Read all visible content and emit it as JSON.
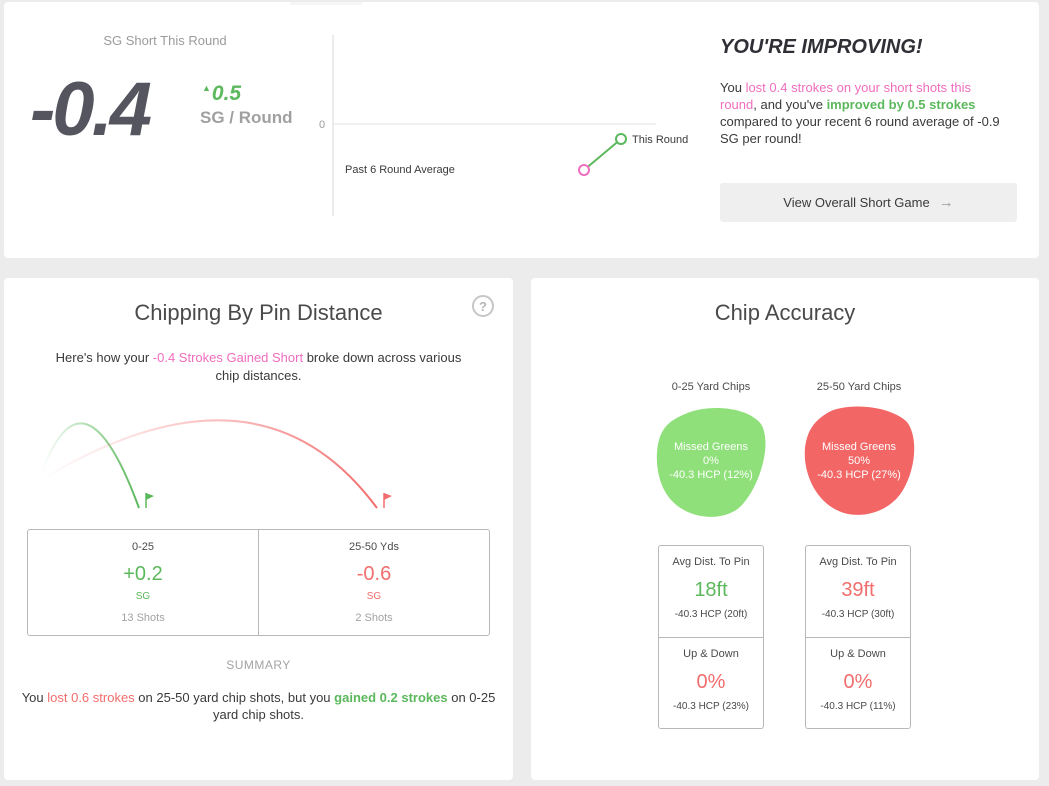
{
  "summary_card": {
    "label": "SG Short This Round",
    "value": "-0.4",
    "delta": "0.5",
    "delta_direction": "up",
    "unit": "SG / Round",
    "chart": {
      "zero_label": "0",
      "past_label": "Past 6 Round Average",
      "current_label": "This Round",
      "past_color": "#f06dbf",
      "current_color": "#5cb85c"
    },
    "headline": "YOU'RE IMPROVING!",
    "message": {
      "p1": "You ",
      "lost": "lost 0.4 strokes on your short shots this round",
      "p2": ", and you've ",
      "improved": "improved by 0.5 strokes",
      "p3": " compared to your recent 6 round average of -0.9 SG per round!"
    },
    "button_label": "View Overall Short Game",
    "button_icon": "arrow-right-icon"
  },
  "chipping": {
    "title": "Chipping By Pin Distance",
    "help_icon": "?",
    "intro": {
      "p1": "Here's how your ",
      "highlight": "-0.4 Strokes Gained Short",
      "p2": " broke down across various chip distances."
    },
    "columns": [
      {
        "label": "0-25",
        "value": "+0.2",
        "unit": "SG",
        "shots": "13 Shots",
        "color": "#5cb85c"
      },
      {
        "label": "25-50 Yds",
        "value": "-0.6",
        "unit": "SG",
        "shots": "2 Shots",
        "color": "#f26d6d"
      }
    ],
    "summary_heading": "SUMMARY",
    "summary": {
      "p1": "You ",
      "lost": "lost 0.6 strokes",
      "p2": " on 25-50 yard chip shots, but you ",
      "gained": "gained 0.2 strokes",
      "p3": " on 0-25 yard chip shots."
    }
  },
  "accuracy": {
    "title": "Chip Accuracy",
    "columns": [
      {
        "label": "0-25 Yard Chips",
        "blob_title": "Missed Greens",
        "blob_pct": "0%",
        "blob_hcp": "-40.3 HCP (12%)",
        "blob_color": "#8fe07a",
        "avg_label": "Avg Dist. To Pin",
        "avg_value": "18ft",
        "avg_hcp": "-40.3 HCP (20ft)",
        "avg_color": "#5cb85c",
        "ud_label": "Up & Down",
        "ud_value": "0%",
        "ud_hcp": "-40.3 HCP (23%)",
        "ud_color": "#f26d6d"
      },
      {
        "label": "25-50 Yard Chips",
        "blob_title": "Missed Greens",
        "blob_pct": "50%",
        "blob_hcp": "-40.3 HCP (27%)",
        "blob_color": "#f26666",
        "avg_label": "Avg Dist. To Pin",
        "avg_value": "39ft",
        "avg_hcp": "-40.3 HCP (30ft)",
        "avg_color": "#f26d6d",
        "ud_label": "Up & Down",
        "ud_value": "0%",
        "ud_hcp": "-40.3 HCP (11%)",
        "ud_color": "#f26d6d"
      }
    ]
  }
}
